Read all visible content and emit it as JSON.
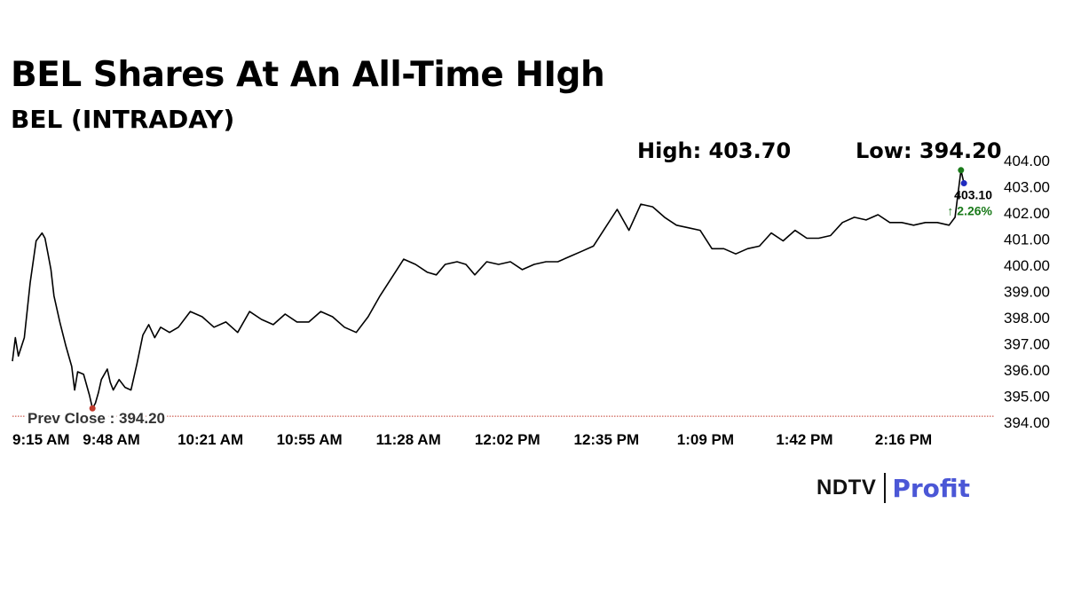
{
  "headline": {
    "title": "BEL Shares At An All-Time HIgh",
    "subtitle": "BEL (INTRADAY)",
    "high_label": "High: 403.70",
    "low_label": "Low: 394.20"
  },
  "branding": {
    "ndtv": "NDTV",
    "profit": "Profit"
  },
  "colors": {
    "line": "#000000",
    "prev_close_line": "#c0392b",
    "low_marker": "#c0392b",
    "high_marker": "#1a7a1a",
    "last_marker": "#1f2bbf",
    "change_up": "#1a7a1a",
    "brand_profit": "#4b57d6"
  },
  "chart_data": {
    "type": "line",
    "x_ticks": [
      "9:15 AM",
      "9:48 AM",
      "10:21 AM",
      "10:55 AM",
      "11:28 AM",
      "12:02 PM",
      "12:35 PM",
      "1:09 PM",
      "1:42 PM",
      "2:16 PM"
    ],
    "y_ticks": [
      "394.00",
      "395.00",
      "396.00",
      "397.00",
      "398.00",
      "399.00",
      "400.00",
      "401.00",
      "402.00",
      "403.00",
      "404.00"
    ],
    "ylim": [
      394.0,
      404.0
    ],
    "x_axis": "time, 9:15 AM to about 2:36 PM (minutes after 9:15 AM)",
    "prev_close": {
      "label": "Prev Close : 394.20",
      "value": 394.2
    },
    "last": {
      "price_label": "403.10",
      "change_label": "↑ 2.26%",
      "value": 403.1
    },
    "series": [
      {
        "x": [
          0,
          1,
          2,
          4,
          6,
          8,
          10,
          11,
          12,
          13,
          14,
          16,
          18,
          20,
          21,
          22,
          24,
          26,
          27,
          28,
          29,
          30,
          32,
          33,
          34,
          35,
          36,
          38,
          40,
          42,
          44,
          46,
          48,
          50,
          53,
          56,
          60,
          64,
          68,
          72,
          76,
          80,
          84,
          88,
          92,
          96,
          100,
          104,
          108,
          112,
          116,
          120,
          124,
          128,
          132,
          136,
          140,
          143,
          146,
          150,
          153,
          156,
          160,
          164,
          168,
          172,
          176,
          180,
          184,
          188,
          192,
          196,
          200,
          204,
          208,
          212,
          216,
          220,
          224,
          228,
          232,
          236,
          240,
          244,
          248,
          252,
          256,
          260,
          264,
          268,
          272,
          276,
          280,
          284,
          288,
          292,
          296,
          300,
          304,
          308,
          312,
          316,
          318,
          320,
          321
        ],
        "values": [
          396.3,
          397.2,
          396.5,
          397.2,
          399.3,
          400.9,
          401.2,
          401.0,
          400.4,
          399.8,
          398.8,
          397.8,
          396.9,
          396.1,
          395.2,
          395.9,
          395.8,
          395.0,
          394.5,
          394.7,
          395.1,
          395.6,
          396.0,
          395.5,
          395.2,
          395.4,
          395.6,
          395.3,
          395.2,
          396.2,
          397.3,
          397.7,
          397.2,
          397.6,
          397.4,
          397.6,
          398.2,
          398.0,
          397.6,
          397.8,
          397.4,
          398.2,
          397.9,
          397.7,
          398.1,
          397.8,
          397.8,
          398.2,
          398.0,
          397.6,
          397.4,
          398.0,
          398.8,
          399.5,
          400.2,
          400.0,
          399.7,
          399.6,
          400.0,
          400.1,
          400.0,
          399.6,
          400.1,
          400.0,
          400.1,
          399.8,
          400.0,
          400.1,
          400.1,
          400.3,
          400.5,
          400.7,
          401.4,
          402.1,
          401.3,
          402.3,
          402.2,
          401.8,
          401.5,
          401.4,
          401.3,
          400.6,
          400.6,
          400.4,
          400.6,
          400.7,
          401.2,
          400.9,
          401.3,
          401.0,
          401.0,
          401.1,
          401.6,
          401.8,
          401.7,
          401.9,
          401.6,
          401.6,
          401.5,
          401.6,
          401.6,
          401.5,
          401.8,
          403.6,
          403.1
        ]
      }
    ]
  }
}
